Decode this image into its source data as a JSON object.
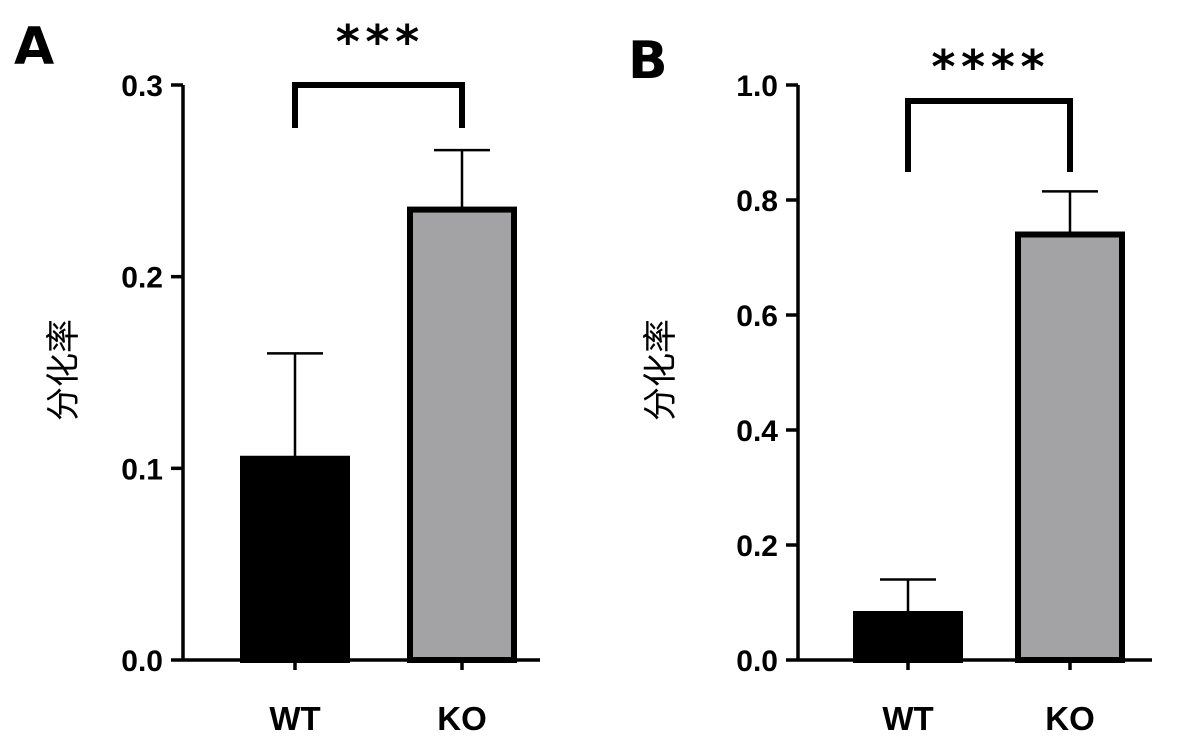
{
  "chart_data": [
    {
      "type": "bar",
      "panel": "A",
      "ylabel": "分化率",
      "ylim": [
        0,
        0.3
      ],
      "yticks": [
        "0.0",
        "0.1",
        "0.2",
        "0.3"
      ],
      "categories": [
        "WT",
        "KO"
      ],
      "values": [
        0.105,
        0.235
      ],
      "errors": [
        0.055,
        0.031
      ],
      "colors": [
        "#000000",
        "#a3a3a6"
      ],
      "significance": "***"
    },
    {
      "type": "bar",
      "panel": "B",
      "ylabel": "分化率",
      "ylim": [
        0,
        1.0
      ],
      "yticks": [
        "0.0",
        "0.2",
        "0.4",
        "0.6",
        "0.8",
        "1.0"
      ],
      "categories": [
        "WT",
        "KO"
      ],
      "values": [
        0.08,
        0.74
      ],
      "errors": [
        0.06,
        0.075
      ],
      "colors": [
        "#000000",
        "#a3a3a6"
      ],
      "significance": "****"
    }
  ]
}
